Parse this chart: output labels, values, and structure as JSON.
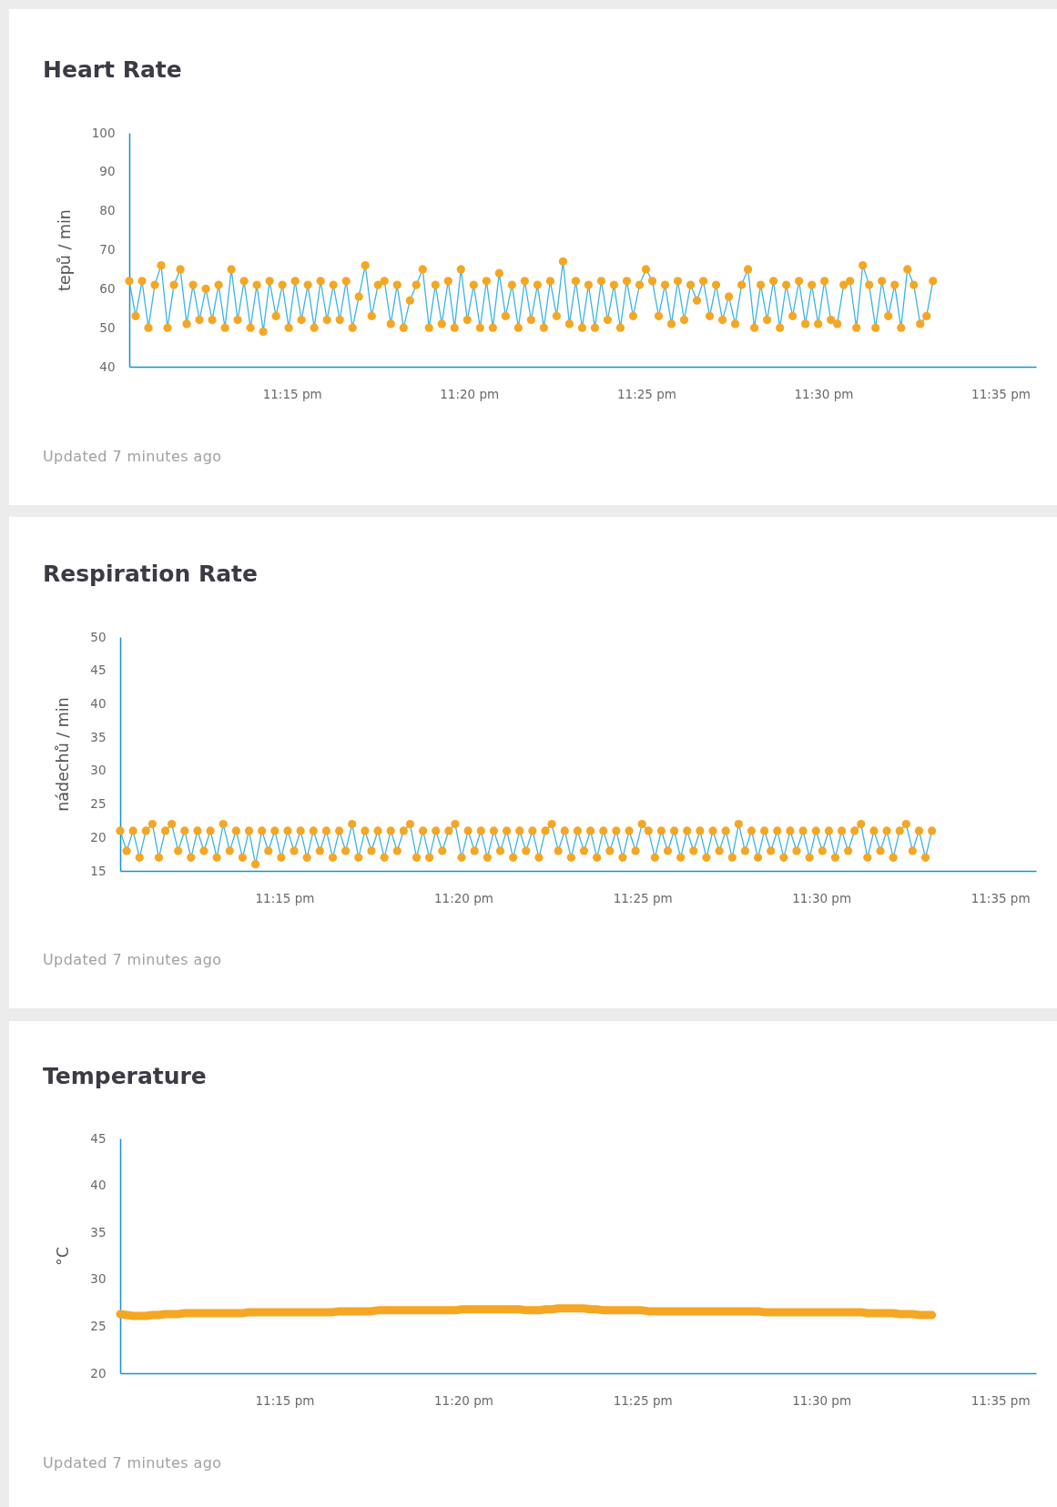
{
  "chart_data": [
    {
      "type": "line",
      "title": "Heart Rate",
      "ylabel": "tepů / min",
      "annotations": [
        "Updated 7 minutes ago"
      ],
      "marker": "circle",
      "xlim": [
        23.1735,
        23.6
      ],
      "xticks": [
        {
          "value": 23.25,
          "label": "11:15 pm"
        },
        {
          "value": 23.3333,
          "label": "11:20 pm"
        },
        {
          "value": 23.4167,
          "label": "11:25 pm"
        },
        {
          "value": 23.5,
          "label": "11:30 pm"
        },
        {
          "value": 23.5833,
          "label": "11:35 pm"
        }
      ],
      "ylim": [
        40,
        100
      ],
      "yticks": [
        40,
        50,
        60,
        70,
        80,
        90,
        100
      ],
      "x": [
        23.1735,
        23.1765,
        23.1795,
        23.1825,
        23.1855,
        23.1885,
        23.1915,
        23.1945,
        23.1975,
        23.2005,
        23.2035,
        23.2065,
        23.2095,
        23.2125,
        23.2155,
        23.2185,
        23.2215,
        23.2245,
        23.2275,
        23.2305,
        23.2335,
        23.2365,
        23.2395,
        23.2425,
        23.2455,
        23.2485,
        23.2515,
        23.2545,
        23.2575,
        23.2605,
        23.2635,
        23.2665,
        23.2695,
        23.2725,
        23.2755,
        23.2785,
        23.2815,
        23.2845,
        23.2875,
        23.2905,
        23.2935,
        23.2965,
        23.2995,
        23.3025,
        23.3055,
        23.3085,
        23.3115,
        23.3145,
        23.3175,
        23.3205,
        23.3235,
        23.3265,
        23.3295,
        23.3325,
        23.3355,
        23.3385,
        23.3415,
        23.3445,
        23.3475,
        23.3505,
        23.3535,
        23.3565,
        23.3595,
        23.3625,
        23.3655,
        23.3685,
        23.3715,
        23.3745,
        23.3775,
        23.3805,
        23.3835,
        23.3865,
        23.3895,
        23.3925,
        23.3955,
        23.3985,
        23.4015,
        23.4045,
        23.4075,
        23.4105,
        23.4135,
        23.4165,
        23.4195,
        23.4225,
        23.4255,
        23.4285,
        23.4315,
        23.4345,
        23.4375,
        23.4405,
        23.4435,
        23.4465,
        23.4495,
        23.4525,
        23.4555,
        23.4585,
        23.4615,
        23.4645,
        23.4675,
        23.4705,
        23.4735,
        23.4765,
        23.4795,
        23.4825,
        23.4855,
        23.4885,
        23.4915,
        23.4945,
        23.4975,
        23.5005,
        23.5035,
        23.5065,
        23.5095,
        23.5125,
        23.5155,
        23.5185,
        23.5215,
        23.5245,
        23.5275,
        23.5305,
        23.5335,
        23.5365,
        23.5395,
        23.5425,
        23.5455,
        23.5485,
        23.5515
      ],
      "series": [
        {
          "color": "#3cb4e5",
          "colors": [
            "#f5a623",
            "#f5a623",
            "#f5a623",
            "#f5a623",
            "#f5a623",
            "#f5a623",
            "#f5a623",
            "#f5a623",
            "#f5a623",
            "#f5a623",
            "#f5a623",
            "#f5a623",
            "#f5a623",
            "#f5a623",
            "#f5a623",
            "#f5a623",
            "#f5a623",
            "#f5a623",
            "#f5a623",
            "#f5a623",
            "#f5a623",
            "#f5a623",
            "#f5a623",
            "#f5a623",
            "#f5a623",
            "#f5a623",
            "#f5a623",
            "#f5a623",
            "#f5a623",
            "#f5a623",
            "#f5a623",
            "#f5a623",
            "#f5a623",
            "#f5a623",
            "#f5a623",
            "#f5a623",
            "#f5a623",
            "#f5a623",
            "#f5a623",
            "#f5a623",
            "#f5a623",
            "#f5a623",
            "#f5a623",
            "#f5a623",
            "#f5a623",
            "#f5a623",
            "#f5a623",
            "#f5a623",
            "#f5a623",
            "#f5a623",
            "#f5a623",
            "#f5a623",
            "#f5a623",
            "#f5a623",
            "#f5a623",
            "#f5a623",
            "#f5a623",
            "#f5a623",
            "#f5a623",
            "#f5a623",
            "#f5a623",
            "#f5a623",
            "#f5a623",
            "#f5a623",
            "#f5a623",
            "#f5a623",
            "#f5a623",
            "#f5a623",
            "#f5a623",
            "#f5a623",
            "#f5a623",
            "#f5a623",
            "#f5a623",
            "#f5a623",
            "#f5a623",
            "#f5a623",
            "#f5a623",
            "#f5a623",
            "#f5a623",
            "#f5a623",
            "#f5a623",
            "#f5a623",
            "#f5a623",
            "#f5a623",
            "#f5a623",
            "#f5a623",
            "#f5a623",
            "#f5a623",
            "#f5a623",
            "#f5a623",
            "#f5a623",
            "#f5a623",
            "#f5a623",
            "#f5a623",
            "#f5a623",
            "#f5a623",
            "#f5a623",
            "#f5a623",
            "#f5a623",
            "#f5a623",
            "#f5a623",
            "#f5a623",
            "#f5a623",
            "#f5a623",
            "#f5a623",
            "#f5a623",
            "#f5a623",
            "#f5a623",
            "#f5a623",
            "#f5a623",
            "#f5a623",
            "#f5a623",
            "#f5a623",
            "#f5a623",
            "#f5a623",
            "#f5a623",
            "#f5a623",
            "#f5a623",
            "#f5a623",
            "#f5a623",
            "#f5a623",
            "#f5a623",
            "#f5a623",
            "#f5a623",
            "#f5a623",
            "#f5a623",
            "#f5a623"
          ],
          "values": [
            62,
            53,
            62,
            50,
            61,
            66,
            50,
            61,
            65,
            51,
            61,
            52,
            60,
            52,
            61,
            50,
            65,
            52,
            62,
            50,
            61,
            49,
            62,
            53,
            61,
            50,
            62,
            52,
            61,
            50,
            62,
            52,
            61,
            52,
            62,
            50,
            58,
            66,
            53,
            61,
            62,
            51,
            61,
            50,
            57,
            61,
            65,
            50,
            61,
            51,
            62,
            50,
            65,
            52,
            61,
            50,
            62,
            50,
            64,
            53,
            61,
            50,
            62,
            52,
            61,
            50,
            62,
            53,
            67,
            51,
            62,
            50,
            61,
            50,
            62,
            52,
            61,
            50,
            62,
            53,
            61,
            65,
            62,
            53,
            61,
            51,
            62,
            52,
            61,
            57,
            62,
            53,
            61,
            52,
            58,
            51,
            61,
            65,
            50,
            61,
            52,
            62,
            50,
            61,
            53,
            62,
            51,
            61,
            51,
            62,
            52,
            51,
            61,
            62,
            50,
            66,
            61,
            50,
            62,
            53,
            61,
            50,
            65,
            61,
            51,
            53,
            62
          ]
        }
      ]
    },
    {
      "type": "line",
      "title": "Respiration Rate",
      "ylabel": "nádechů / min",
      "annotations": [
        "Updated 7 minutes ago"
      ],
      "marker": "circle",
      "xlim": [
        23.1735,
        23.6
      ],
      "xticks": [
        {
          "value": 23.25,
          "label": "11:15 pm"
        },
        {
          "value": 23.3333,
          "label": "11:20 pm"
        },
        {
          "value": 23.4167,
          "label": "11:25 pm"
        },
        {
          "value": 23.5,
          "label": "11:30 pm"
        },
        {
          "value": 23.5833,
          "label": "11:35 pm"
        }
      ],
      "ylim": [
        15,
        50
      ],
      "yticks": [
        15,
        20,
        25,
        30,
        35,
        40,
        45,
        50
      ],
      "x": [
        23.1735,
        23.1765,
        23.1795,
        23.1825,
        23.1855,
        23.1885,
        23.1915,
        23.1945,
        23.1975,
        23.2005,
        23.2035,
        23.2065,
        23.2095,
        23.2125,
        23.2155,
        23.2185,
        23.2215,
        23.2245,
        23.2275,
        23.2305,
        23.2335,
        23.2365,
        23.2395,
        23.2425,
        23.2455,
        23.2485,
        23.2515,
        23.2545,
        23.2575,
        23.2605,
        23.2635,
        23.2665,
        23.2695,
        23.2725,
        23.2755,
        23.2785,
        23.2815,
        23.2845,
        23.2875,
        23.2905,
        23.2935,
        23.2965,
        23.2995,
        23.3025,
        23.3055,
        23.3085,
        23.3115,
        23.3145,
        23.3175,
        23.3205,
        23.3235,
        23.3265,
        23.3295,
        23.3325,
        23.3355,
        23.3385,
        23.3415,
        23.3445,
        23.3475,
        23.3505,
        23.3535,
        23.3565,
        23.3595,
        23.3625,
        23.3655,
        23.3685,
        23.3715,
        23.3745,
        23.3775,
        23.3805,
        23.3835,
        23.3865,
        23.3895,
        23.3925,
        23.3955,
        23.3985,
        23.4015,
        23.4045,
        23.4075,
        23.4105,
        23.4135,
        23.4165,
        23.4195,
        23.4225,
        23.4255,
        23.4285,
        23.4315,
        23.4345,
        23.4375,
        23.4405,
        23.4435,
        23.4465,
        23.4495,
        23.4525,
        23.4555,
        23.4585,
        23.4615,
        23.4645,
        23.4675,
        23.4705,
        23.4735,
        23.4765,
        23.4795,
        23.4825,
        23.4855,
        23.4885,
        23.4915,
        23.4945,
        23.4975,
        23.5005,
        23.5035,
        23.5065,
        23.5095,
        23.5125,
        23.5155,
        23.5185,
        23.5215,
        23.5245,
        23.5275,
        23.5305,
        23.5335,
        23.5365,
        23.5395,
        23.5425,
        23.5455,
        23.5485,
        23.5515
      ],
      "series": [
        {
          "color": "#3cb4e5",
          "colors": [
            "#f5a623",
            "#f5a623",
            "#f5a623",
            "#f5a623",
            "#f5a623",
            "#f5a623",
            "#f5a623",
            "#f5a623",
            "#f5a623",
            "#f5a623",
            "#f5a623",
            "#f5a623",
            "#f5a623",
            "#f5a623",
            "#f5a623",
            "#f5a623",
            "#f5a623",
            "#f5a623",
            "#f5a623",
            "#f5a623",
            "#f5a623",
            "#f5a623",
            "#f5a623",
            "#f5a623",
            "#f5a623",
            "#f5a623",
            "#f5a623",
            "#f5a623",
            "#f5a623",
            "#f5a623",
            "#f5a623",
            "#f5a623",
            "#f5a623",
            "#f5a623",
            "#f5a623",
            "#f5a623",
            "#f5a623",
            "#f5a623",
            "#f5a623",
            "#f5a623",
            "#f5a623",
            "#f5a623",
            "#f5a623",
            "#f5a623",
            "#f5a623",
            "#f5a623",
            "#f5a623",
            "#f5a623",
            "#f5a623",
            "#f5a623",
            "#f5a623",
            "#f5a623",
            "#f5a623",
            "#f5a623",
            "#f5a623",
            "#f5a623",
            "#f5a623",
            "#f5a623",
            "#f5a623",
            "#f5a623",
            "#f5a623",
            "#f5a623",
            "#f5a623",
            "#f5a623",
            "#f5a623",
            "#f5a623",
            "#f5a623",
            "#f5a623",
            "#f5a623",
            "#f5a623",
            "#f5a623",
            "#f5a623",
            "#f5a623",
            "#f5a623",
            "#f5a623",
            "#f5a623",
            "#f5a623",
            "#f5a623",
            "#f5a623",
            "#f5a623",
            "#f5a623",
            "#f5a623",
            "#f5a623",
            "#f5a623",
            "#f5a623",
            "#f5a623",
            "#f5a623",
            "#f5a623",
            "#f5a623",
            "#f5a623",
            "#f5a623",
            "#f5a623",
            "#f5a623",
            "#f5a623",
            "#f5a623",
            "#f5a623",
            "#f5a623",
            "#f5a623",
            "#f5a623",
            "#f5a623",
            "#f5a623",
            "#f5a623",
            "#f5a623",
            "#f5a623",
            "#f5a623",
            "#f5a623",
            "#f5a623",
            "#f5a623",
            "#f5a623",
            "#f5a623",
            "#f5a623",
            "#f5a623",
            "#f5a623",
            "#f5a623",
            "#f5a623",
            "#f5a623",
            "#f5a623",
            "#f5a623",
            "#f5a623",
            "#f5a623",
            "#f5a623",
            "#f5a623",
            "#f5a623",
            "#f5a623",
            "#f5a623",
            "#f5a623",
            "#f5a623"
          ],
          "values": [
            21,
            18,
            21,
            17,
            21,
            22,
            17,
            21,
            22,
            18,
            21,
            17,
            21,
            18,
            21,
            17,
            22,
            18,
            21,
            17,
            21,
            16,
            21,
            18,
            21,
            17,
            21,
            18,
            21,
            17,
            21,
            18,
            21,
            17,
            21,
            18,
            22,
            17,
            21,
            18,
            21,
            17,
            21,
            18,
            21,
            22,
            17,
            21,
            17,
            21,
            18,
            21,
            22,
            17,
            21,
            18,
            21,
            17,
            21,
            18,
            21,
            17,
            21,
            18,
            21,
            17,
            21,
            22,
            18,
            21,
            17,
            21,
            18,
            21,
            17,
            21,
            18,
            21,
            17,
            21,
            18,
            22,
            21,
            17,
            21,
            18,
            21,
            17,
            21,
            18,
            21,
            17,
            21,
            18,
            21,
            17,
            22,
            18,
            21,
            17,
            21,
            18,
            21,
            17,
            21,
            18,
            21,
            17,
            21,
            18,
            21,
            17,
            21,
            18,
            21,
            22,
            17,
            21,
            18,
            21,
            17,
            21,
            22,
            18,
            21,
            17,
            21
          ]
        }
      ]
    },
    {
      "type": "line",
      "title": "Temperature",
      "ylabel": "°C",
      "annotations": [
        "Updated 7 minutes ago"
      ],
      "xlim": [
        23.1735,
        23.6
      ],
      "xticks": [
        {
          "value": 23.25,
          "label": "11:15 pm"
        },
        {
          "value": 23.3333,
          "label": "11:20 pm"
        },
        {
          "value": 23.4167,
          "label": "11:25 pm"
        },
        {
          "value": 23.5,
          "label": "11:30 pm"
        },
        {
          "value": 23.5833,
          "label": "11:35 pm"
        }
      ],
      "ylim": [
        20,
        45
      ],
      "yticks": [
        20,
        25,
        30,
        35,
        40,
        45
      ],
      "x": [
        23.1735,
        23.1765,
        23.1795,
        23.1825,
        23.1855,
        23.1885,
        23.1915,
        23.1945,
        23.1975,
        23.2005,
        23.2035,
        23.2065,
        23.2095,
        23.2125,
        23.2155,
        23.2185,
        23.2215,
        23.2245,
        23.2275,
        23.2305,
        23.2335,
        23.2365,
        23.2395,
        23.2425,
        23.2455,
        23.2485,
        23.2515,
        23.2545,
        23.2575,
        23.2605,
        23.2635,
        23.2665,
        23.2695,
        23.2725,
        23.2755,
        23.2785,
        23.2815,
        23.2845,
        23.2875,
        23.2905,
        23.2935,
        23.2965,
        23.2995,
        23.3025,
        23.3055,
        23.3085,
        23.3115,
        23.3145,
        23.3175,
        23.3205,
        23.3235,
        23.3265,
        23.3295,
        23.3325,
        23.3355,
        23.3385,
        23.3415,
        23.3445,
        23.3475,
        23.3505,
        23.3535,
        23.3565,
        23.3595,
        23.3625,
        23.3655,
        23.3685,
        23.3715,
        23.3745,
        23.3775,
        23.3805,
        23.3835,
        23.3865,
        23.3895,
        23.3925,
        23.3955,
        23.3985,
        23.4015,
        23.4045,
        23.4075,
        23.4105,
        23.4135,
        23.4165,
        23.4195,
        23.4225,
        23.4255,
        23.4285,
        23.4315,
        23.4345,
        23.4375,
        23.4405,
        23.4435,
        23.4465,
        23.4495,
        23.4525,
        23.4555,
        23.4585,
        23.4615,
        23.4645,
        23.4675,
        23.4705,
        23.4735,
        23.4765,
        23.4795,
        23.4825,
        23.4855,
        23.4885,
        23.4915,
        23.4945,
        23.4975,
        23.5005,
        23.5035,
        23.5065,
        23.5095,
        23.5125,
        23.5155,
        23.5185,
        23.5215,
        23.5245,
        23.5275,
        23.5305,
        23.5335,
        23.5365,
        23.5395,
        23.5425,
        23.5455,
        23.5485,
        23.5515
      ],
      "series": [
        {
          "color": "#f5a623",
          "values": [
            26.3,
            26.2,
            26.1,
            26.1,
            26.1,
            26.2,
            26.2,
            26.3,
            26.3,
            26.3,
            26.4,
            26.4,
            26.4,
            26.4,
            26.4,
            26.4,
            26.4,
            26.4,
            26.4,
            26.4,
            26.5,
            26.5,
            26.5,
            26.5,
            26.5,
            26.5,
            26.5,
            26.5,
            26.5,
            26.5,
            26.5,
            26.5,
            26.5,
            26.5,
            26.6,
            26.6,
            26.6,
            26.6,
            26.6,
            26.6,
            26.7,
            26.7,
            26.7,
            26.7,
            26.7,
            26.7,
            26.7,
            26.7,
            26.7,
            26.7,
            26.7,
            26.7,
            26.7,
            26.8,
            26.8,
            26.8,
            26.8,
            26.8,
            26.8,
            26.8,
            26.8,
            26.8,
            26.8,
            26.7,
            26.7,
            26.7,
            26.8,
            26.8,
            26.9,
            26.9,
            26.9,
            26.9,
            26.9,
            26.8,
            26.8,
            26.7,
            26.7,
            26.7,
            26.7,
            26.7,
            26.7,
            26.7,
            26.6,
            26.6,
            26.6,
            26.6,
            26.6,
            26.6,
            26.6,
            26.6,
            26.6,
            26.6,
            26.6,
            26.6,
            26.6,
            26.6,
            26.6,
            26.6,
            26.6,
            26.6,
            26.5,
            26.5,
            26.5,
            26.5,
            26.5,
            26.5,
            26.5,
            26.5,
            26.5,
            26.5,
            26.5,
            26.5,
            26.5,
            26.5,
            26.5,
            26.5,
            26.4,
            26.4,
            26.4,
            26.4,
            26.4,
            26.3,
            26.3,
            26.3,
            26.2,
            26.2,
            26.2
          ]
        }
      ]
    }
  ]
}
